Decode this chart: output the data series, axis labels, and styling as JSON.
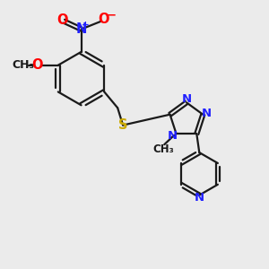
{
  "bg_color": "#ebebeb",
  "bond_color": "#1a1a1a",
  "N_color": "#2020ff",
  "O_color": "#ff0000",
  "S_color": "#ccaa00",
  "line_width": 1.6,
  "font_size": 9.5,
  "xlim": [
    0,
    10
  ],
  "ylim": [
    0,
    10
  ]
}
